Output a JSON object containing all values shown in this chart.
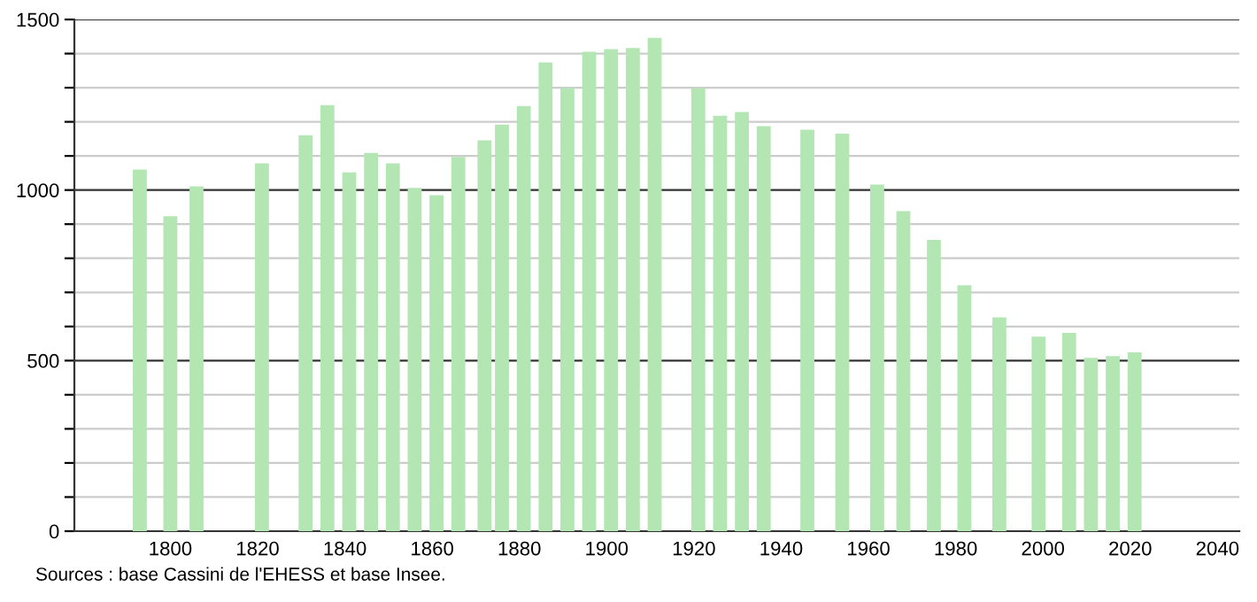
{
  "chart_data": {
    "type": "bar",
    "x": [
      1793,
      1800,
      1806,
      1821,
      1831,
      1836,
      1841,
      1846,
      1851,
      1856,
      1861,
      1866,
      1872,
      1876,
      1881,
      1886,
      1891,
      1896,
      1901,
      1906,
      1911,
      1921,
      1926,
      1931,
      1936,
      1946,
      1954,
      1962,
      1968,
      1975,
      1982,
      1990,
      1999,
      2006,
      2011,
      2016,
      2021
    ],
    "values": [
      1060,
      923,
      1011,
      1078,
      1161,
      1249,
      1052,
      1109,
      1078,
      1006,
      985,
      1097,
      1146,
      1192,
      1246,
      1374,
      1299,
      1405,
      1413,
      1416,
      1446,
      1299,
      1218,
      1229,
      1187,
      1177,
      1165,
      1016,
      938,
      854,
      721,
      627,
      570,
      581,
      508,
      513,
      524
    ],
    "color": "#b3e6b3",
    "xlim": [
      1778,
      2045
    ],
    "xticks": [
      1800,
      1820,
      1840,
      1860,
      1880,
      1900,
      1920,
      1940,
      1960,
      1980,
      2000,
      2020,
      2040
    ],
    "ylim": [
      0,
      1500
    ],
    "yticks": [
      0,
      {
        "value": 100,
        "label": null
      },
      {
        "value": 200,
        "label": null
      },
      {
        "value": 300,
        "label": null
      },
      {
        "value": 400,
        "label": null
      },
      500,
      {
        "value": 600,
        "label": null
      },
      {
        "value": 700,
        "label": null
      },
      {
        "value": 800,
        "label": null
      },
      {
        "value": 900,
        "label": null
      },
      1000,
      {
        "value": 1100,
        "label": null
      },
      {
        "value": 1200,
        "label": null
      },
      {
        "value": 1300,
        "label": null
      },
      {
        "value": 1400,
        "label": null
      },
      1500
    ],
    "grid": "y",
    "annotations": [
      "Sources : base Cassini de l'EHESS et base Insee."
    ]
  }
}
